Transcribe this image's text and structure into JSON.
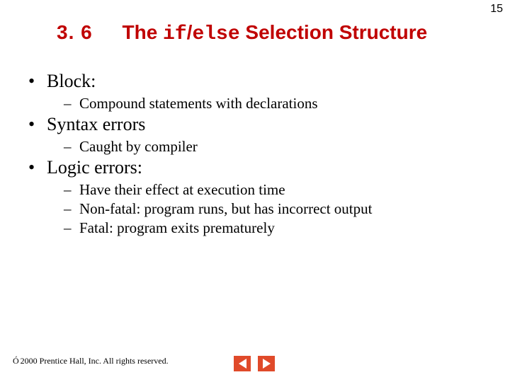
{
  "page_number": "15",
  "heading": {
    "color": "#c00000",
    "section_number": "3. 6",
    "prefix": "The ",
    "code1": "if",
    "slash": "/",
    "code2": "else",
    "suffix": " Selection Structure"
  },
  "bullets": [
    {
      "level": 1,
      "text": "Block:"
    },
    {
      "level": 2,
      "text": "Compound statements with declarations"
    },
    {
      "level": 1,
      "text": "Syntax errors"
    },
    {
      "level": 2,
      "text": "Caught by compiler"
    },
    {
      "level": 1,
      "text": "Logic errors:"
    },
    {
      "level": 2,
      "text": "Have their effect at execution time"
    },
    {
      "level": 2,
      "text": "Non-fatal:  program runs, but has incorrect output"
    },
    {
      "level": 2,
      "text": "Fatal:  program exits prematurely"
    }
  ],
  "footer": {
    "copyright_symbol": "Ó",
    "text": " 2000 Prentice Hall, Inc.  All rights reserved."
  },
  "nav": {
    "button_color": "#e04a2a",
    "arrow_color": "#ffffff"
  }
}
